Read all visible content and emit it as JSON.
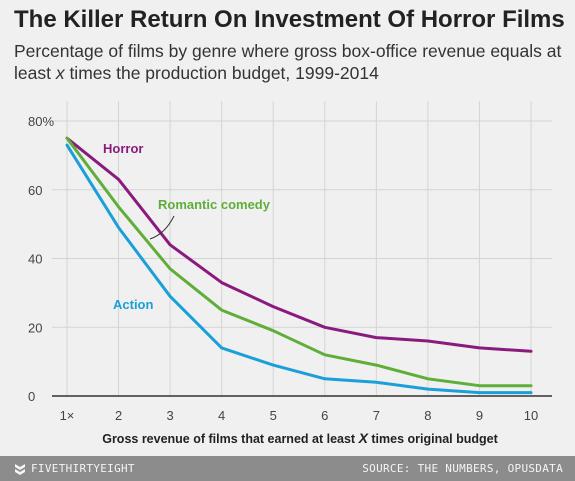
{
  "header": {
    "title": "The Killer Return On Investment Of Horror Films",
    "subtitle_before": "Percentage of films by genre where gross box-office revenue equals at least ",
    "subtitle_var": "x",
    "subtitle_after": " times the production budget, 1999-2014"
  },
  "footer": {
    "brand": "FIVETHIRTYEIGHT",
    "logo_icon": "fivethirtyeight-logo-icon",
    "source": "SOURCE: THE NUMBERS, OPUSDATA"
  },
  "colors": {
    "background": "#f0f0f0",
    "grid": "#d4d4d4",
    "axis": "#333333",
    "horror": "#8b1a7e",
    "romantic_comedy": "#5fae3a",
    "action": "#1a9fd9"
  },
  "chart_data": {
    "type": "line",
    "x": [
      1,
      2,
      3,
      4,
      5,
      6,
      7,
      8,
      9,
      10
    ],
    "x_tick_labels": [
      "1×",
      "2",
      "3",
      "4",
      "5",
      "6",
      "7",
      "8",
      "9",
      "10"
    ],
    "y_ticks": [
      0,
      20,
      40,
      60,
      80
    ],
    "y_tick_labels": [
      "0",
      "20",
      "40",
      "60",
      "80%"
    ],
    "ylim": [
      0,
      80
    ],
    "xlim": [
      1,
      10
    ],
    "grid": true,
    "xlabel_before": "Gross revenue of films that earned at least ",
    "xlabel_var": "X",
    "xlabel_after": " times original budget",
    "ylabel": "",
    "series": [
      {
        "name": "Horror",
        "key": "horror",
        "values": [
          75,
          63,
          44,
          33,
          26,
          20,
          17,
          16,
          14,
          13
        ]
      },
      {
        "name": "Romantic comedy",
        "key": "romantic_comedy",
        "values": [
          75,
          55,
          37,
          25,
          19,
          12,
          9,
          5,
          3,
          3
        ]
      },
      {
        "name": "Action",
        "key": "action",
        "values": [
          73,
          49,
          29,
          14,
          9,
          5,
          4,
          2,
          1,
          1
        ]
      }
    ]
  }
}
